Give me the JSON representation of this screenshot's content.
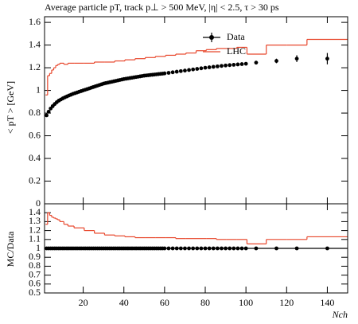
{
  "chart_data": [
    {
      "type": "line",
      "title": "Average particle pT, track p⊥ > 500 MeV, |η| < 2.5, τ > 30 ps",
      "ylabel": "< pT >  [GeV]",
      "ylim": [
        0,
        1.65
      ],
      "yticks": [
        0,
        0.2,
        0.4,
        0.6,
        0.8,
        1,
        1.2,
        1.4,
        1.6
      ],
      "xlim": [
        1,
        150
      ],
      "legend": "upper right",
      "series": [
        {
          "name": "Data",
          "color": "#000000",
          "x": [
            2,
            3,
            4,
            5,
            6,
            7,
            8,
            9,
            10,
            11,
            12,
            13,
            14,
            15,
            16,
            17,
            18,
            19,
            20,
            21,
            22,
            23,
            24,
            25,
            26,
            27,
            28,
            29,
            30,
            31,
            32,
            33,
            34,
            35,
            36,
            37,
            38,
            39,
            40,
            41,
            42,
            43,
            44,
            45,
            46,
            47,
            48,
            49,
            50,
            51,
            52,
            53,
            54,
            55,
            56,
            57,
            58,
            59,
            60,
            62,
            64,
            66,
            68,
            70,
            72,
            74,
            76,
            78,
            80,
            82,
            84,
            86,
            88,
            90,
            92,
            94,
            96,
            98,
            100,
            105,
            115,
            125,
            140
          ],
          "values": [
            0.78,
            0.812,
            0.84,
            0.861,
            0.88,
            0.896,
            0.91,
            0.92,
            0.93,
            0.939,
            0.947,
            0.955,
            0.962,
            0.97,
            0.976,
            0.982,
            0.988,
            0.994,
            1.0,
            1.006,
            1.012,
            1.018,
            1.024,
            1.03,
            1.036,
            1.042,
            1.048,
            1.054,
            1.06,
            1.064,
            1.068,
            1.072,
            1.076,
            1.08,
            1.084,
            1.088,
            1.092,
            1.096,
            1.1,
            1.103,
            1.106,
            1.109,
            1.112,
            1.115,
            1.118,
            1.121,
            1.124,
            1.127,
            1.13,
            1.132,
            1.134,
            1.136,
            1.138,
            1.14,
            1.142,
            1.144,
            1.146,
            1.148,
            1.15,
            1.155,
            1.16,
            1.165,
            1.17,
            1.175,
            1.18,
            1.185,
            1.19,
            1.195,
            1.2,
            1.204,
            1.208,
            1.212,
            1.216,
            1.22,
            1.223,
            1.226,
            1.229,
            1.232,
            1.235,
            1.245,
            1.26,
            1.28,
            1.28
          ],
          "errors": [
            0.003,
            0.003,
            0.003,
            0.003,
            0.003,
            0.003,
            0.003,
            0.003,
            0.003,
            0.003,
            0.003,
            0.003,
            0.003,
            0.003,
            0.003,
            0.003,
            0.003,
            0.003,
            0.003,
            0.003,
            0.003,
            0.003,
            0.003,
            0.003,
            0.003,
            0.003,
            0.003,
            0.003,
            0.003,
            0.003,
            0.003,
            0.003,
            0.003,
            0.003,
            0.003,
            0.003,
            0.003,
            0.003,
            0.003,
            0.003,
            0.003,
            0.003,
            0.003,
            0.003,
            0.003,
            0.003,
            0.003,
            0.003,
            0.003,
            0.003,
            0.003,
            0.003,
            0.003,
            0.003,
            0.003,
            0.003,
            0.003,
            0.003,
            0.003,
            0.005,
            0.005,
            0.005,
            0.005,
            0.005,
            0.005,
            0.005,
            0.005,
            0.005,
            0.005,
            0.005,
            0.005,
            0.005,
            0.005,
            0.005,
            0.005,
            0.005,
            0.005,
            0.005,
            0.005,
            0.01,
            0.02,
            0.03,
            0.05
          ]
        },
        {
          "name": "LHC",
          "color": "#e8472c",
          "bins": [
            1.5,
            2.5,
            3.5,
            4.5,
            5.5,
            6.5,
            7.5,
            8.5,
            10.5,
            12.5,
            15.5,
            20.5,
            25.5,
            30.5,
            35.5,
            40.5,
            45.5,
            50.5,
            55.5,
            60.5,
            65.5,
            70.5,
            75.5,
            80.5,
            85.5,
            90.5,
            95.5,
            100.5,
            110,
            120,
            130,
            150
          ],
          "values": [
            0.96,
            1.13,
            1.15,
            1.18,
            1.2,
            1.22,
            1.23,
            1.24,
            1.23,
            1.24,
            1.24,
            1.24,
            1.25,
            1.25,
            1.26,
            1.27,
            1.28,
            1.29,
            1.3,
            1.31,
            1.32,
            1.33,
            1.35,
            1.36,
            1.37,
            1.37,
            1.38,
            1.32,
            1.4,
            1.4,
            1.45
          ]
        }
      ]
    },
    {
      "type": "ratio",
      "ylabel": "MC/Data",
      "xlabel": "Nch",
      "ylim": [
        0.5,
        1.5
      ],
      "yticks": [
        0.5,
        0.6,
        0.7,
        0.8,
        0.9,
        1,
        1.1,
        1.2,
        1.3,
        1.4
      ],
      "xlim": [
        1,
        150
      ],
      "xticks": [
        20,
        40,
        60,
        80,
        100,
        120,
        140
      ],
      "reference": 1,
      "series": [
        {
          "name": "LHC",
          "color": "#e8472c",
          "bins": [
            1.5,
            2.5,
            3.5,
            4.5,
            5.5,
            6.5,
            7.5,
            8.5,
            10.5,
            12.5,
            15.5,
            20.5,
            25.5,
            30.5,
            35.5,
            40.5,
            45.5,
            50.5,
            55.5,
            60.5,
            65.5,
            70.5,
            75.5,
            80.5,
            85.5,
            90.5,
            95.5,
            100.5,
            110,
            120,
            130,
            150
          ],
          "values": [
            1.27,
            1.4,
            1.37,
            1.35,
            1.34,
            1.33,
            1.32,
            1.3,
            1.27,
            1.25,
            1.23,
            1.2,
            1.17,
            1.15,
            1.14,
            1.13,
            1.12,
            1.12,
            1.12,
            1.12,
            1.11,
            1.11,
            1.11,
            1.11,
            1.1,
            1.1,
            1.1,
            1.05,
            1.1,
            1.1,
            1.13
          ]
        }
      ]
    }
  ]
}
